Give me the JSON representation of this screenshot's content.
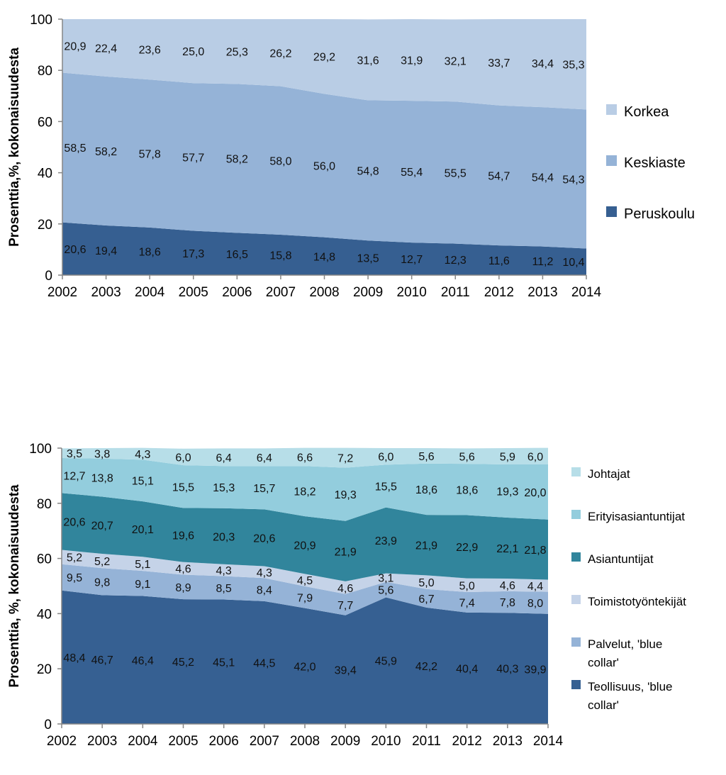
{
  "chart_data": [
    {
      "type": "area",
      "stacked": true,
      "x": [
        "2002",
        "2003",
        "2004",
        "2005",
        "2006",
        "2007",
        "2008",
        "2009",
        "2010",
        "2011",
        "2012",
        "2013",
        "2014"
      ],
      "ylabel": "Prosenttia,%, kokonaisuudesta",
      "ylim": [
        0,
        100
      ],
      "yticks": [
        "0",
        "20",
        "40",
        "60",
        "80",
        "100"
      ],
      "legend_position": "right",
      "series": [
        {
          "name": "Peruskoulu",
          "color": "#365f91",
          "values": [
            20.6,
            19.4,
            18.6,
            17.3,
            16.5,
            15.8,
            14.8,
            13.5,
            12.7,
            12.3,
            11.6,
            11.2,
            10.4
          ],
          "labels": [
            "20,6",
            "19,4",
            "18,6",
            "17,3",
            "16,5",
            "15,8",
            "14,8",
            "13,5",
            "12,7",
            "12,3",
            "11,6",
            "11,2",
            "10,4"
          ]
        },
        {
          "name": "Keskiaste",
          "color": "#95b3d7",
          "values": [
            58.5,
            58.2,
            57.8,
            57.7,
            58.2,
            58.0,
            56.0,
            54.8,
            55.4,
            55.5,
            54.7,
            54.4,
            54.3
          ],
          "labels": [
            "58,5",
            "58,2",
            "57,8",
            "57,7",
            "58,2",
            "58,0",
            "56,0",
            "54,8",
            "55,4",
            "55,5",
            "54,7",
            "54,4",
            "54,3"
          ]
        },
        {
          "name": "Korkea",
          "color": "#b9cde5",
          "values": [
            20.9,
            22.4,
            23.6,
            25.0,
            25.3,
            26.2,
            29.2,
            31.6,
            31.9,
            32.1,
            33.7,
            34.4,
            35.3
          ],
          "labels": [
            "20,9",
            "22,4",
            "23,6",
            "25,0",
            "25,3",
            "26,2",
            "29,2",
            "31,6",
            "31,9",
            "32,1",
            "33,7",
            "34,4",
            "35,3"
          ]
        }
      ]
    },
    {
      "type": "area",
      "stacked": true,
      "x": [
        "2002",
        "2003",
        "2004",
        "2005",
        "2006",
        "2007",
        "2008",
        "2009",
        "2010",
        "2011",
        "2012",
        "2013",
        "2014"
      ],
      "ylabel": "Prosenttia, %, kokonaisuudesta",
      "ylim": [
        0,
        100
      ],
      "yticks": [
        "0",
        "20",
        "40",
        "60",
        "80",
        "100"
      ],
      "legend_position": "right",
      "series": [
        {
          "name": "Teollisuus, 'blue collar'",
          "color": "#366092",
          "values": [
            48.4,
            46.7,
            46.4,
            45.2,
            45.1,
            44.5,
            42.0,
            39.4,
            45.9,
            42.2,
            40.4,
            40.3,
            39.9
          ],
          "labels": [
            "48,4",
            "46,7",
            "46,4",
            "45,2",
            "45,1",
            "44,5",
            "42,0",
            "39,4",
            "45,9",
            "42,2",
            "40,4",
            "40,3",
            "39,9"
          ]
        },
        {
          "name": "Palvelut, 'blue collar'",
          "color": "#95b3d7",
          "values": [
            9.5,
            9.8,
            9.1,
            8.9,
            8.5,
            8.4,
            7.9,
            7.7,
            5.6,
            6.7,
            7.4,
            7.8,
            8.0
          ],
          "labels": [
            "9,5",
            "9,8",
            "9,1",
            "8,9",
            "8,5",
            "8,4",
            "7,9",
            "7,7",
            "5,6",
            "6,7",
            "7,4",
            "7,8",
            "8,0"
          ]
        },
        {
          "name": "Toimistotyöntekijät",
          "color": "#c5d3e8",
          "values": [
            5.2,
            5.2,
            5.1,
            4.6,
            4.3,
            4.3,
            4.5,
            4.6,
            3.1,
            5.0,
            5.0,
            4.6,
            4.4
          ],
          "labels": [
            "5,2",
            "5,2",
            "5,1",
            "4,6",
            "4,3",
            "4,3",
            "4,5",
            "4,6",
            "3,1",
            "5,0",
            "5,0",
            "4,6",
            "4,4"
          ]
        },
        {
          "name": "Asiantuntijat",
          "color": "#31859c",
          "values": [
            20.6,
            20.7,
            20.1,
            19.6,
            20.3,
            20.6,
            20.9,
            21.9,
            23.9,
            21.9,
            22.9,
            22.1,
            21.8
          ],
          "labels": [
            "20,6",
            "20,7",
            "20,1",
            "19,6",
            "20,3",
            "20,6",
            "20,9",
            "21,9",
            "23,9",
            "21,9",
            "22,9",
            "22,1",
            "21,8"
          ]
        },
        {
          "name": "Erityisasiantuntijat",
          "color": "#93cddd",
          "values": [
            12.7,
            13.8,
            15.1,
            15.5,
            15.3,
            15.7,
            18.2,
            19.3,
            15.5,
            18.6,
            18.6,
            19.3,
            20.0
          ],
          "labels": [
            "12,7",
            "13,8",
            "15,1",
            "15,5",
            "15,3",
            "15,7",
            "18,2",
            "19,3",
            "15,5",
            "18,6",
            "18,6",
            "19,3",
            "20,0"
          ]
        },
        {
          "name": "Johtajat",
          "color": "#b7dee8",
          "values": [
            3.5,
            3.8,
            4.3,
            6.0,
            6.4,
            6.4,
            6.6,
            7.2,
            6.0,
            5.6,
            5.6,
            5.9,
            6.0
          ],
          "labels": [
            "3,5",
            "3,8",
            "4,3",
            "6,0",
            "6,4",
            "6,4",
            "6,6",
            "7,2",
            "6,0",
            "5,6",
            "5,6",
            "5,9",
            "6,0"
          ]
        }
      ]
    }
  ]
}
